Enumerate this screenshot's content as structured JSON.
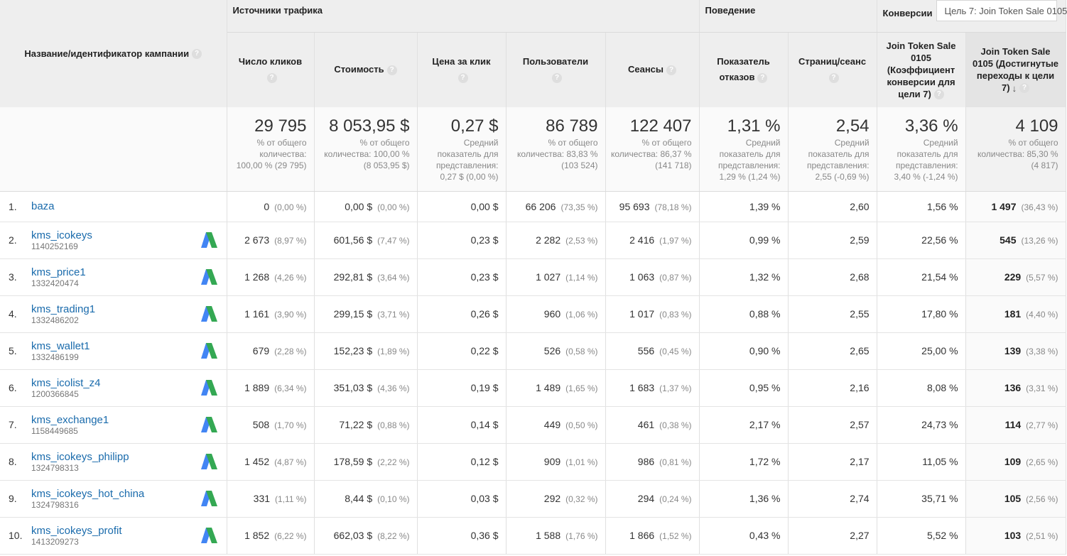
{
  "header": {
    "campaign_column": "Название/идентификатор кампании",
    "groups": {
      "traffic": "Источники трафика",
      "behavior": "Поведение",
      "conversions": "Конверсии"
    },
    "goal_select": "Цель 7: Join Token Sale 0105",
    "columns": {
      "clicks": "Число кликов",
      "cost": "Стоимость",
      "cpc": "Цена за клик",
      "users": "Пользователи",
      "sessions": "Сеансы",
      "bounce": "Показатель отказов",
      "pages": "Страниц/сеанс",
      "conv_rate": "Join Token Sale 0105 (Коэффициент конверсии для цели 7)",
      "completions": "Join Token Sale 0105 (Достигнутые переходы к цели 7)"
    }
  },
  "totals": {
    "clicks": {
      "value": "29 795",
      "note": "% от общего количества: 100,00 % (29 795)"
    },
    "cost": {
      "value": "8 053,95 $",
      "note": "% от общего количества: 100,00 % (8 053,95 $)"
    },
    "cpc": {
      "value": "0,27 $",
      "note": "Средний показатель для представления: 0,27 $ (0,00 %)"
    },
    "users": {
      "value": "86 789",
      "note": "% от общего количества: 83,83 % (103 524)"
    },
    "sessions": {
      "value": "122 407",
      "note": "% от общего количества: 86,37 % (141 718)"
    },
    "bounce": {
      "value": "1,31 %",
      "note": "Средний показатель для представления: 1,29 % (1,24 %)"
    },
    "pages": {
      "value": "2,54",
      "note": "Средний показатель для представления: 2,55 (-0,69 %)"
    },
    "conv_rate": {
      "value": "3,36 %",
      "note": "Средний показатель для представления: 3,40 % (-1,24 %)"
    },
    "completions": {
      "value": "4 109",
      "note": "% от общего количества: 85,30 % (4 817)"
    }
  },
  "rows": [
    {
      "index": "1.",
      "name": "baza",
      "id": "",
      "ads": false,
      "clicks": "0",
      "clicks_pct": "(0,00 %)",
      "cost": "0,00 $",
      "cost_pct": "(0,00 %)",
      "cpc": "0,00 $",
      "users": "66 206",
      "users_pct": "(73,35 %)",
      "sessions": "95 693",
      "sessions_pct": "(78,18 %)",
      "bounce": "1,39 %",
      "pages": "2,60",
      "conv_rate": "1,56 %",
      "completions": "1 497",
      "completions_pct": "(36,43 %)"
    },
    {
      "index": "2.",
      "name": "kms_icokeys",
      "id": "1140252169",
      "ads": true,
      "clicks": "2 673",
      "clicks_pct": "(8,97 %)",
      "cost": "601,56 $",
      "cost_pct": "(7,47 %)",
      "cpc": "0,23 $",
      "users": "2 282",
      "users_pct": "(2,53 %)",
      "sessions": "2 416",
      "sessions_pct": "(1,97 %)",
      "bounce": "0,99 %",
      "pages": "2,59",
      "conv_rate": "22,56 %",
      "completions": "545",
      "completions_pct": "(13,26 %)"
    },
    {
      "index": "3.",
      "name": "kms_price1",
      "id": "1332420474",
      "ads": true,
      "clicks": "1 268",
      "clicks_pct": "(4,26 %)",
      "cost": "292,81 $",
      "cost_pct": "(3,64 %)",
      "cpc": "0,23 $",
      "users": "1 027",
      "users_pct": "(1,14 %)",
      "sessions": "1 063",
      "sessions_pct": "(0,87 %)",
      "bounce": "1,32 %",
      "pages": "2,68",
      "conv_rate": "21,54 %",
      "completions": "229",
      "completions_pct": "(5,57 %)"
    },
    {
      "index": "4.",
      "name": "kms_trading1",
      "id": "1332486202",
      "ads": true,
      "clicks": "1 161",
      "clicks_pct": "(3,90 %)",
      "cost": "299,15 $",
      "cost_pct": "(3,71 %)",
      "cpc": "0,26 $",
      "users": "960",
      "users_pct": "(1,06 %)",
      "sessions": "1 017",
      "sessions_pct": "(0,83 %)",
      "bounce": "0,88 %",
      "pages": "2,55",
      "conv_rate": "17,80 %",
      "completions": "181",
      "completions_pct": "(4,40 %)"
    },
    {
      "index": "5.",
      "name": "kms_wallet1",
      "id": "1332486199",
      "ads": true,
      "clicks": "679",
      "clicks_pct": "(2,28 %)",
      "cost": "152,23 $",
      "cost_pct": "(1,89 %)",
      "cpc": "0,22 $",
      "users": "526",
      "users_pct": "(0,58 %)",
      "sessions": "556",
      "sessions_pct": "(0,45 %)",
      "bounce": "0,90 %",
      "pages": "2,65",
      "conv_rate": "25,00 %",
      "completions": "139",
      "completions_pct": "(3,38 %)"
    },
    {
      "index": "6.",
      "name": "kms_icolist_z4",
      "id": "1200366845",
      "ads": true,
      "clicks": "1 889",
      "clicks_pct": "(6,34 %)",
      "cost": "351,03 $",
      "cost_pct": "(4,36 %)",
      "cpc": "0,19 $",
      "users": "1 489",
      "users_pct": "(1,65 %)",
      "sessions": "1 683",
      "sessions_pct": "(1,37 %)",
      "bounce": "0,95 %",
      "pages": "2,16",
      "conv_rate": "8,08 %",
      "completions": "136",
      "completions_pct": "(3,31 %)"
    },
    {
      "index": "7.",
      "name": "kms_exchange1",
      "id": "1158449685",
      "ads": true,
      "clicks": "508",
      "clicks_pct": "(1,70 %)",
      "cost": "71,22 $",
      "cost_pct": "(0,88 %)",
      "cpc": "0,14 $",
      "users": "449",
      "users_pct": "(0,50 %)",
      "sessions": "461",
      "sessions_pct": "(0,38 %)",
      "bounce": "2,17 %",
      "pages": "2,57",
      "conv_rate": "24,73 %",
      "completions": "114",
      "completions_pct": "(2,77 %)"
    },
    {
      "index": "8.",
      "name": "kms_icokeys_philipp",
      "id": "1324798313",
      "ads": true,
      "clicks": "1 452",
      "clicks_pct": "(4,87 %)",
      "cost": "178,59 $",
      "cost_pct": "(2,22 %)",
      "cpc": "0,12 $",
      "users": "909",
      "users_pct": "(1,01 %)",
      "sessions": "986",
      "sessions_pct": "(0,81 %)",
      "bounce": "1,72 %",
      "pages": "2,17",
      "conv_rate": "11,05 %",
      "completions": "109",
      "completions_pct": "(2,65 %)"
    },
    {
      "index": "9.",
      "name": "kms_icokeys_hot_china",
      "id": "1324798316",
      "ads": true,
      "clicks": "331",
      "clicks_pct": "(1,11 %)",
      "cost": "8,44 $",
      "cost_pct": "(0,10 %)",
      "cpc": "0,03 $",
      "users": "292",
      "users_pct": "(0,32 %)",
      "sessions": "294",
      "sessions_pct": "(0,24 %)",
      "bounce": "1,36 %",
      "pages": "2,74",
      "conv_rate": "35,71 %",
      "completions": "105",
      "completions_pct": "(2,56 %)"
    },
    {
      "index": "10.",
      "name": "kms_icokeys_profit",
      "id": "1413209273",
      "ads": true,
      "clicks": "1 852",
      "clicks_pct": "(6,22 %)",
      "cost": "662,03 $",
      "cost_pct": "(8,22 %)",
      "cpc": "0,36 $",
      "users": "1 588",
      "users_pct": "(1,76 %)",
      "sessions": "1 866",
      "sessions_pct": "(1,52 %)",
      "bounce": "0,43 %",
      "pages": "2,27",
      "conv_rate": "5,52 %",
      "completions": "103",
      "completions_pct": "(2,51 %)"
    }
  ],
  "icons": {
    "help": "?",
    "sort_desc": "↓",
    "ads_logo": "google-ads-icon"
  },
  "colors": {
    "link": "#1a6bac",
    "ads_blue": "#4285f4",
    "ads_green": "#34a853",
    "header_bg": "#eeeeee"
  }
}
